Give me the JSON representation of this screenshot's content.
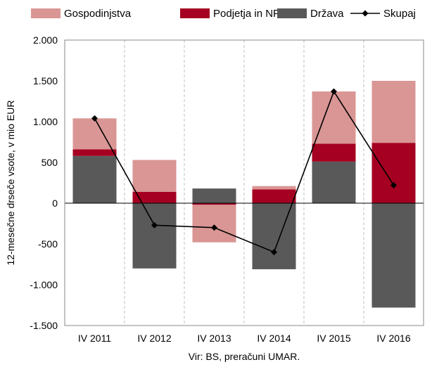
{
  "chart_data": {
    "type": "bar",
    "subtype": "stacked-bar-with-line",
    "categories": [
      "IV 2011",
      "IV 2012",
      "IV 2013",
      "IV 2014",
      "IV 2015",
      "IV 2016"
    ],
    "series": [
      {
        "name": "Gospodinjstva",
        "kind": "bar",
        "color": "#d99694",
        "values": [
          380,
          390,
          -460,
          40,
          640,
          760
        ]
      },
      {
        "name": "Podjetja in NFI",
        "kind": "bar",
        "color": "#a50021",
        "values": [
          80,
          140,
          -20,
          170,
          220,
          740
        ]
      },
      {
        "name": "Država",
        "kind": "bar",
        "color": "#595959",
        "values": [
          580,
          -800,
          180,
          -810,
          510,
          -1280
        ]
      },
      {
        "name": "Skupaj",
        "kind": "line",
        "color": "#000000",
        "values": [
          1040,
          -270,
          -300,
          -600,
          1370,
          220
        ]
      }
    ],
    "ylabel": "12-mesečne drseče vsote, v mio EUR",
    "xlabel": "",
    "ylim": [
      -1500,
      2000
    ],
    "yticks": [
      2000,
      1500,
      1000,
      500,
      0,
      -500,
      -1000,
      -1500
    ],
    "ytick_labels": [
      "2.000",
      "1.500",
      "1.000",
      "500",
      "0",
      "-500",
      "-1.000",
      "-1.500"
    ],
    "grid": "vertical",
    "legend": "top",
    "source": "Vir: BS, preračuni UMAR."
  }
}
